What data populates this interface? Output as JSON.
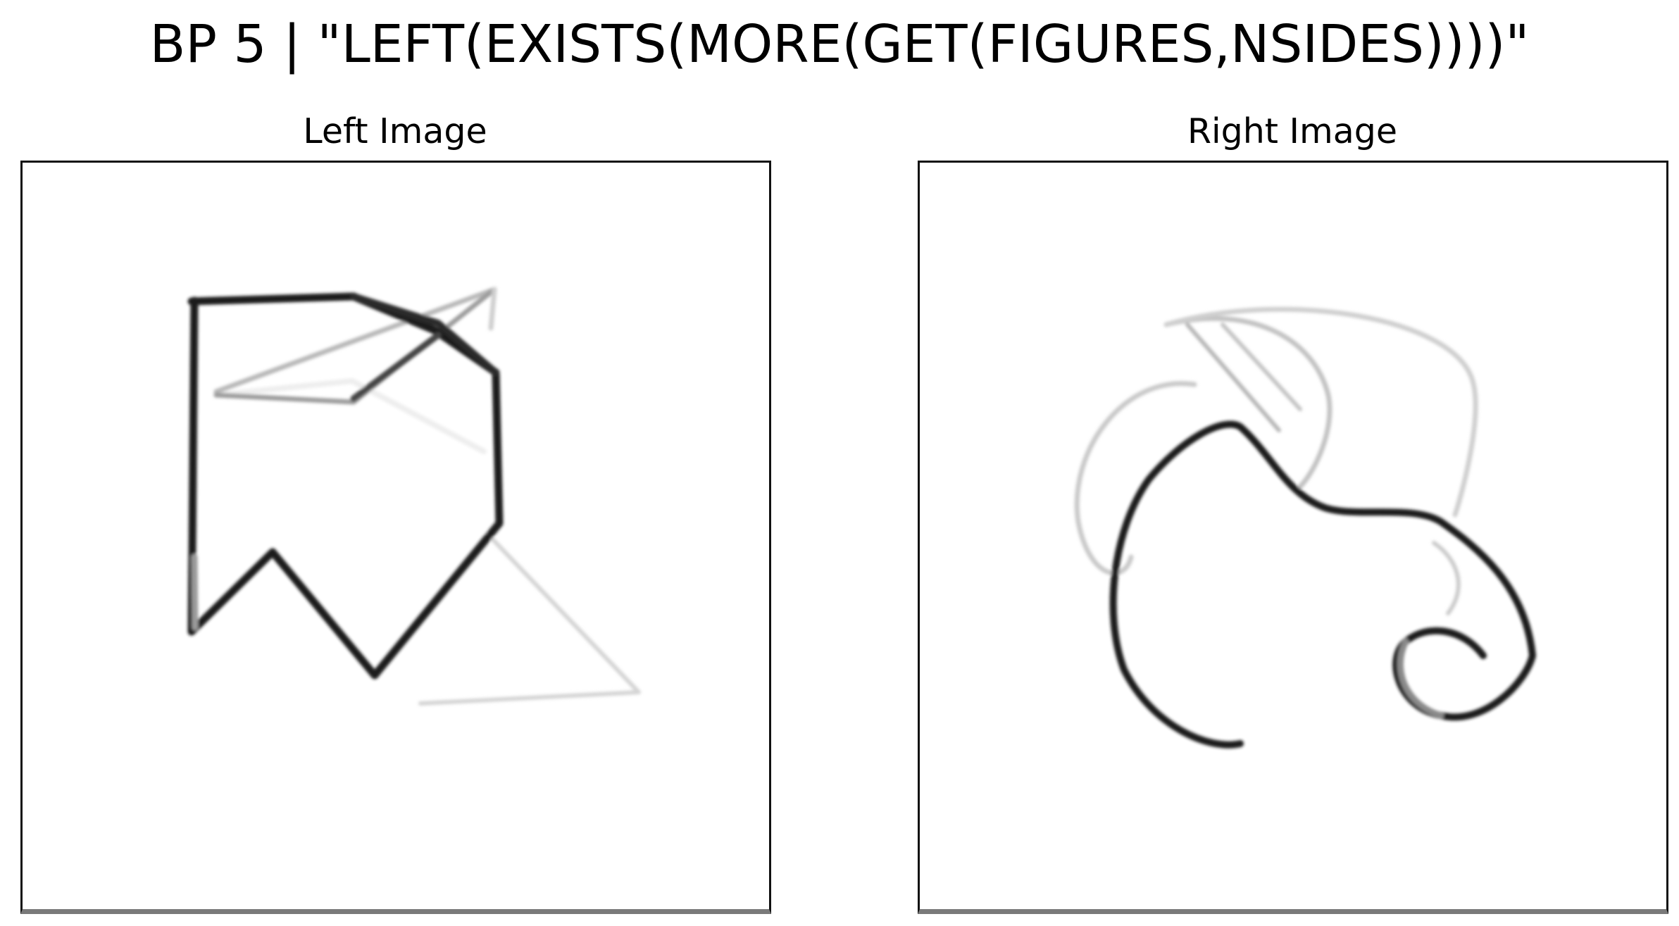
{
  "figure": {
    "title": "BP 5 | \"LEFT(EXISTS(MORE(GET(FIGURES,NSIDES))))\""
  },
  "panels": {
    "left": {
      "title": "Left Image"
    },
    "right": {
      "title": "Right Image"
    }
  },
  "colors": {
    "background": "#ffffff",
    "stroke_dark": "#111111",
    "stroke_faint": "#bdbdbd"
  }
}
